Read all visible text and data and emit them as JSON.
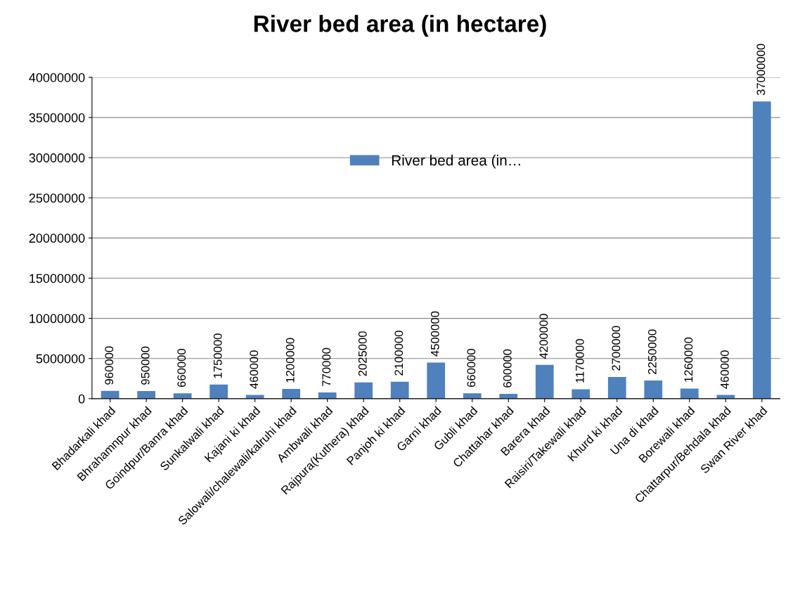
{
  "chart_data": {
    "type": "bar",
    "title": "River bed area (in hectare)",
    "categories": [
      "Bhadarkali khad",
      "Bhrahamnpur khad",
      "Goindpur/Banra khad",
      "Sunkalwali khad",
      "Kajani ki khad",
      "Salowali/chalewali/kalruhi khad",
      "Ambwali khad",
      "Rajpura(Kuthera) khad",
      "Panjoh ki khad",
      "Garni khad",
      "Gubli khad",
      "Chattahar khad",
      "Barera khad",
      "Raisiri/Takewali khad",
      "Khurd ki khad",
      "Una di khad",
      "Borewali khad",
      "Chattarpur/Behdala khad",
      "Swan River khad"
    ],
    "series": [
      {
        "name": "River bed area (in…",
        "color": "#4f81bd",
        "values": [
          960000,
          950000,
          660000,
          1750000,
          460000,
          1200000,
          770000,
          2025000,
          2100000,
          4500000,
          660000,
          600000,
          4200000,
          1170000,
          2700000,
          2250000,
          1260000,
          460000,
          37000000
        ]
      }
    ],
    "ylim": [
      0,
      40000000
    ],
    "yticks": [
      0,
      5000000,
      10000000,
      15000000,
      20000000,
      25000000,
      30000000,
      35000000,
      40000000
    ],
    "grid": "y",
    "legend": "top",
    "data_labels": true
  }
}
